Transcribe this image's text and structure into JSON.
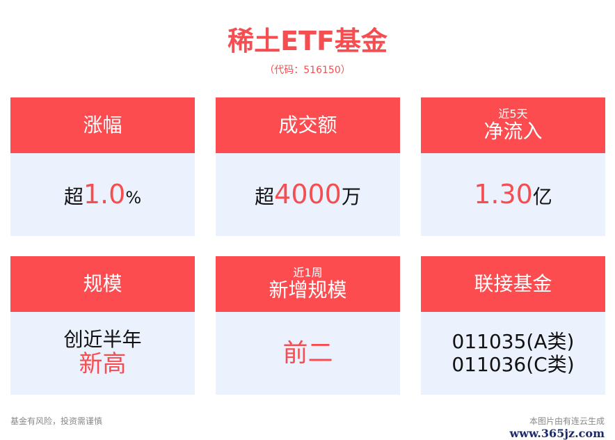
{
  "title": "稀土ETF基金",
  "code": "（代码：516150）",
  "cards": [
    {
      "header": "涨幅",
      "pre": "超",
      "value": "1.0",
      "post": "%"
    },
    {
      "header": "成交额",
      "pre": "超",
      "value": "4000",
      "post": "万"
    },
    {
      "sub": "近5天",
      "header": "净流入",
      "pre": "",
      "value": "1.30",
      "post": "亿"
    },
    {
      "header": "规模",
      "line1": "创近半年",
      "line2": "新高"
    },
    {
      "sub": "近1周",
      "header": "新增规模",
      "value": "前二"
    },
    {
      "header": "联接基金",
      "line1": "011035(A类)",
      "line2": "011036(C类)"
    }
  ],
  "footer": {
    "disclaimer": "基金有风险，投资需谨慎",
    "credit": "本图片由有连云生成",
    "watermark": "www.365jz.com"
  },
  "colors": {
    "accent": "#fc4c50",
    "body": "#ecf2fd"
  }
}
